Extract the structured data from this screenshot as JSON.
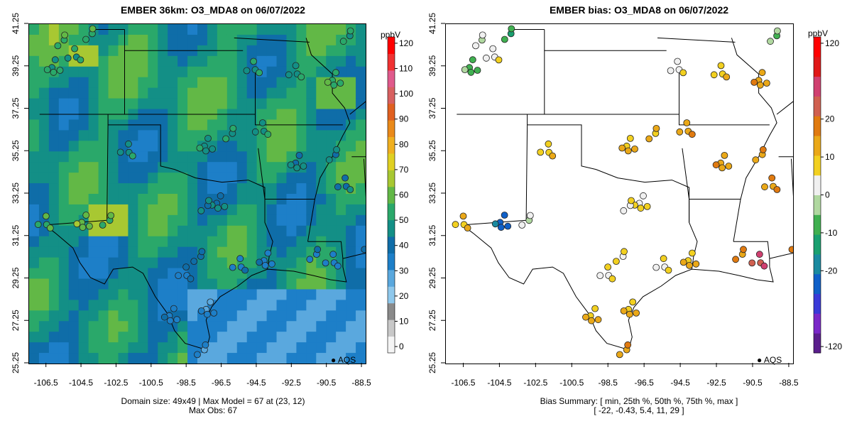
{
  "left": {
    "title": "EMBER 36km: O3_MDA8 on 06/07/2022",
    "footer_line1": "Domain size: 49x49 | Max Model = 67 at (23, 12)",
    "footer_line2": "Max Obs: 67",
    "units": "ppbV",
    "legend_label": "AQS",
    "colorbar": {
      "min": 0,
      "max": 120,
      "ticks": [
        "0",
        "10",
        "20",
        "30",
        "40",
        "50",
        "60",
        "70",
        "80",
        "90",
        "100",
        "110",
        "120"
      ],
      "colors": [
        "#f5f5f5",
        "#c8c8c8",
        "#8a8a8a",
        "#8fc8ec",
        "#5aa8de",
        "#1d7fc8",
        "#0f6da8",
        "#138f86",
        "#2aa86a",
        "#62b846",
        "#a8c832",
        "#e0d022",
        "#f0b020",
        "#ea8a1a",
        "#e06020",
        "#d86060",
        "#e05a8c",
        "#f03232",
        "#ff0000"
      ]
    }
  },
  "right": {
    "title": "EMBER bias: O3_MDA8 on 06/07/2022",
    "footer_line1": "Bias Summary: [ min, 25th %, 50th %, 75th %, max ]",
    "footer_line2": "[ -22,   -0.43,   5.4,   11,   29 ]",
    "units": "ppbV",
    "legend_label": "AQS",
    "colorbar": {
      "min": -125,
      "max": 125,
      "ticks": [
        "-120",
        "-20",
        "-10",
        "0",
        "10",
        "20",
        "120"
      ],
      "colors": [
        "#5a1e8c",
        "#7a28c8",
        "#3a3ad8",
        "#1060c8",
        "#1a8aa0",
        "#1aa070",
        "#40b050",
        "#b0d8a0",
        "#f0f0f0",
        "#f2d020",
        "#eaa818",
        "#e07a10",
        "#d06050",
        "#d04070",
        "#e01818",
        "#ff0000"
      ]
    }
  },
  "axes": {
    "x_ticks": [
      "-106.5",
      "-104.5",
      "-102.5",
      "-100.5",
      "-98.5",
      "-96.5",
      "-94.5",
      "-92.5",
      "-90.5",
      "-88.5"
    ],
    "y_ticks": [
      "25.25",
      "27.25",
      "29.25",
      "31.25",
      "33.25",
      "35.25",
      "37.25",
      "39.25",
      "41.25"
    ],
    "lon_range": [
      -107.5,
      -88.3
    ],
    "lat_range": [
      25.25,
      41.25
    ]
  },
  "site_groups": [
    {
      "lon": -103.9,
      "lat": 40.8,
      "left": 55,
      "bias": -8
    },
    {
      "lon": -104.8,
      "lat": 39.7,
      "left": 50,
      "bias": 3
    },
    {
      "lon": -106.2,
      "lat": 39.2,
      "left": 52,
      "bias": -5
    },
    {
      "lon": -105.5,
      "lat": 40.5,
      "left": 54,
      "bias": 0
    },
    {
      "lon": -94.6,
      "lat": 39.1,
      "left": 50,
      "bias": 2
    },
    {
      "lon": -90.2,
      "lat": 38.6,
      "left": 55,
      "bias": 10
    },
    {
      "lon": -89.2,
      "lat": 40.7,
      "left": 50,
      "bias": -3
    },
    {
      "lon": -92.2,
      "lat": 38.9,
      "left": 48,
      "bias": 6
    },
    {
      "lon": -97.5,
      "lat": 35.5,
      "left": 48,
      "bias": 8
    },
    {
      "lon": -95.9,
      "lat": 36.1,
      "left": 50,
      "bias": 9
    },
    {
      "lon": -94.1,
      "lat": 36.2,
      "left": 49,
      "bias": 10
    },
    {
      "lon": -92.3,
      "lat": 34.7,
      "left": 46,
      "bias": 11
    },
    {
      "lon": -90.0,
      "lat": 35.1,
      "left": 45,
      "bias": 10
    },
    {
      "lon": -89.4,
      "lat": 33.6,
      "left": 42,
      "bias": 12
    },
    {
      "lon": -96.8,
      "lat": 32.8,
      "left": 44,
      "bias": 4
    },
    {
      "lon": -97.3,
      "lat": 32.7,
      "left": 45,
      "bias": 3
    },
    {
      "lon": -95.4,
      "lat": 29.8,
      "left": 36,
      "bias": 5
    },
    {
      "lon": -94.1,
      "lat": 30.1,
      "left": 35,
      "bias": 9
    },
    {
      "lon": -91.1,
      "lat": 30.4,
      "left": 34,
      "bias": 12
    },
    {
      "lon": -90.1,
      "lat": 30.0,
      "left": 33,
      "bias": 20
    },
    {
      "lon": -88.1,
      "lat": 30.7,
      "left": 34,
      "bias": 12
    },
    {
      "lon": -97.7,
      "lat": 30.3,
      "left": 40,
      "bias": 4
    },
    {
      "lon": -98.5,
      "lat": 29.4,
      "left": 38,
      "bias": 5
    },
    {
      "lon": -97.4,
      "lat": 27.8,
      "left": 31,
      "bias": 8
    },
    {
      "lon": -97.5,
      "lat": 25.9,
      "left": 32,
      "bias": 10
    },
    {
      "lon": -106.5,
      "lat": 31.8,
      "left": 58,
      "bias": 9
    },
    {
      "lon": -104.5,
      "lat": 31.9,
      "left": 62,
      "bias": -18
    },
    {
      "lon": -102.9,
      "lat": 32.0,
      "left": 55,
      "bias": 0
    },
    {
      "lon": -101.8,
      "lat": 35.2,
      "left": 48,
      "bias": 7
    },
    {
      "lon": -99.5,
      "lat": 27.5,
      "left": 36,
      "bias": 9
    }
  ]
}
